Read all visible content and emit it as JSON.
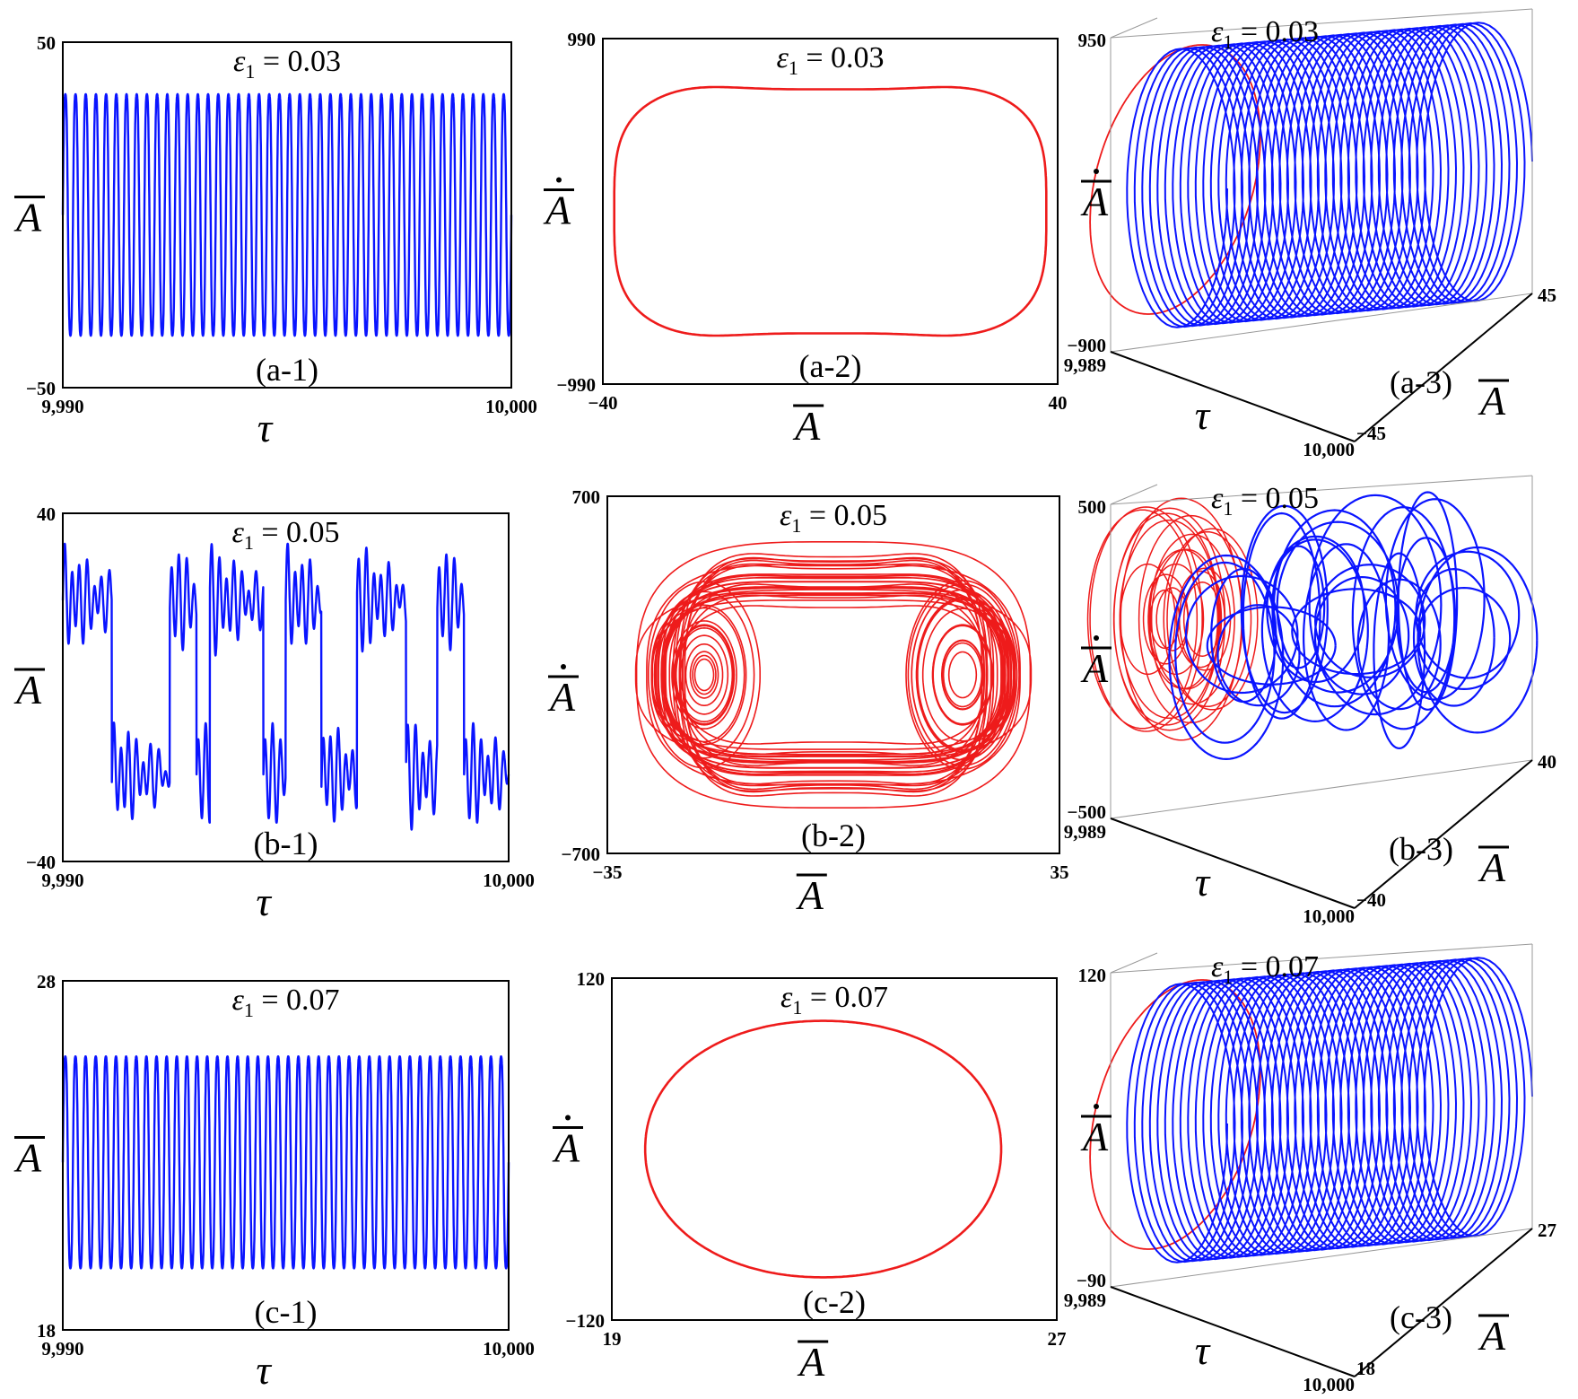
{
  "colors": {
    "time_series": "#0a14ff",
    "phase": "#ee1b1b",
    "frame": "#000000"
  },
  "chart_data": [
    {
      "id": "a-1",
      "type": "line",
      "panel_label": "(a-1)",
      "annotation": "ε1 = 0.03",
      "xlabel": "τ",
      "ylabel": "A",
      "xlim": [
        9990,
        10000
      ],
      "ylim": [
        -50,
        50
      ],
      "x_tick_labels": [
        "9,990",
        "10,000"
      ],
      "y_tick_labels": [
        "50",
        "−50"
      ],
      "series": [
        {
          "form": "periodic",
          "amplitude": 38,
          "offset": 0,
          "cycles": 44
        }
      ]
    },
    {
      "id": "a-2",
      "type": "line",
      "panel_label": "(a-2)",
      "annotation": "ε1 = 0.03",
      "xlabel": "A",
      "ylabel": "Ȧ",
      "xlim": [
        -40,
        40
      ],
      "ylim": [
        -990,
        990
      ],
      "x_tick_labels": [
        "−40",
        "40"
      ],
      "y_tick_labels": [
        "990",
        "−990"
      ],
      "series": [
        {
          "form": "closed_orbit",
          "x_amplitude": 38,
          "y_amplitude": 760,
          "x_center": 0,
          "y_center": 0
        }
      ]
    },
    {
      "id": "a-3",
      "type": "line",
      "panel_label": "(a-3)",
      "annotation": "ε1 = 0.03",
      "xlabel": "τ",
      "ylabel": "Ȧ",
      "zlabel": "A",
      "xlim": [
        9989,
        10000
      ],
      "ylim": [
        -900,
        950
      ],
      "zlim": [
        -45,
        45
      ],
      "x_tick_labels": [
        "9,989",
        "10,000"
      ],
      "y_tick_labels": [
        "950",
        "−900"
      ],
      "z_tick_labels": [
        "45",
        "−45"
      ],
      "series": [
        {
          "form": "helix",
          "turns": 40
        }
      ]
    },
    {
      "id": "b-1",
      "type": "line",
      "panel_label": "(b-1)",
      "annotation": "ε1 = 0.05",
      "xlabel": "τ",
      "ylabel": "A",
      "xlim": [
        9990,
        10000
      ],
      "ylim": [
        -40,
        40
      ],
      "x_tick_labels": [
        "9,990",
        "10,000"
      ],
      "y_tick_labels": [
        "40",
        "−40"
      ],
      "series": [
        {
          "form": "chaotic"
        }
      ]
    },
    {
      "id": "b-2",
      "type": "line",
      "panel_label": "(b-2)",
      "annotation": "ε1 = 0.05",
      "xlabel": "A",
      "ylabel": "Ȧ",
      "xlim": [
        -35,
        35
      ],
      "ylim": [
        -700,
        700
      ],
      "x_tick_labels": [
        "−35",
        "35"
      ],
      "y_tick_labels": [
        "700",
        "−700"
      ],
      "series": [
        {
          "form": "double_well_attractor",
          "well_centers": [
            -20,
            20
          ]
        }
      ]
    },
    {
      "id": "b-3",
      "type": "line",
      "panel_label": "(b-3)",
      "annotation": "ε1 = 0.05",
      "xlabel": "τ",
      "ylabel": "Ȧ",
      "zlabel": "A",
      "xlim": [
        9989,
        10000
      ],
      "ylim": [
        -500,
        500
      ],
      "zlim": [
        -40,
        40
      ],
      "x_tick_labels": [
        "9,989",
        "10,000"
      ],
      "y_tick_labels": [
        "500",
        "−500"
      ],
      "z_tick_labels": [
        "40",
        "−40"
      ],
      "series": [
        {
          "form": "chaotic_3d"
        }
      ]
    },
    {
      "id": "c-1",
      "type": "line",
      "panel_label": "(c-1)",
      "annotation": "ε1 = 0.07",
      "xlabel": "τ",
      "ylabel": "A",
      "xlim": [
        9990,
        10000
      ],
      "ylim": [
        18,
        28
      ],
      "x_tick_labels": [
        "9,990",
        "10,000"
      ],
      "y_tick_labels": [
        "28",
        "18"
      ],
      "series": [
        {
          "form": "periodic",
          "amplitude": 3.3,
          "offset": 22.8,
          "cycles": 44
        }
      ]
    },
    {
      "id": "c-2",
      "type": "line",
      "panel_label": "(c-2)",
      "annotation": "ε1 = 0.07",
      "xlabel": "A",
      "ylabel": "Ȧ",
      "xlim": [
        19,
        27
      ],
      "ylim": [
        -120,
        120
      ],
      "x_tick_labels": [
        "19",
        "27"
      ],
      "y_tick_labels": [
        "120",
        "−120"
      ],
      "series": [
        {
          "form": "closed_orbit",
          "x_amplitude": 3.2,
          "y_amplitude": 90,
          "x_center": 22.8,
          "y_center": 0
        }
      ]
    },
    {
      "id": "c-3",
      "type": "line",
      "panel_label": "(c-3)",
      "annotation": "ε1 = 0.07",
      "xlabel": "τ",
      "ylabel": "Ȧ",
      "zlabel": "A",
      "xlim": [
        9989,
        10000
      ],
      "ylim": [
        -90,
        120
      ],
      "zlim": [
        18,
        27
      ],
      "x_tick_labels": [
        "9,989",
        "10,000"
      ],
      "y_tick_labels": [
        "120",
        "−90"
      ],
      "z_tick_labels": [
        "27",
        "18"
      ],
      "series": [
        {
          "form": "helix",
          "turns": 40
        }
      ]
    }
  ]
}
